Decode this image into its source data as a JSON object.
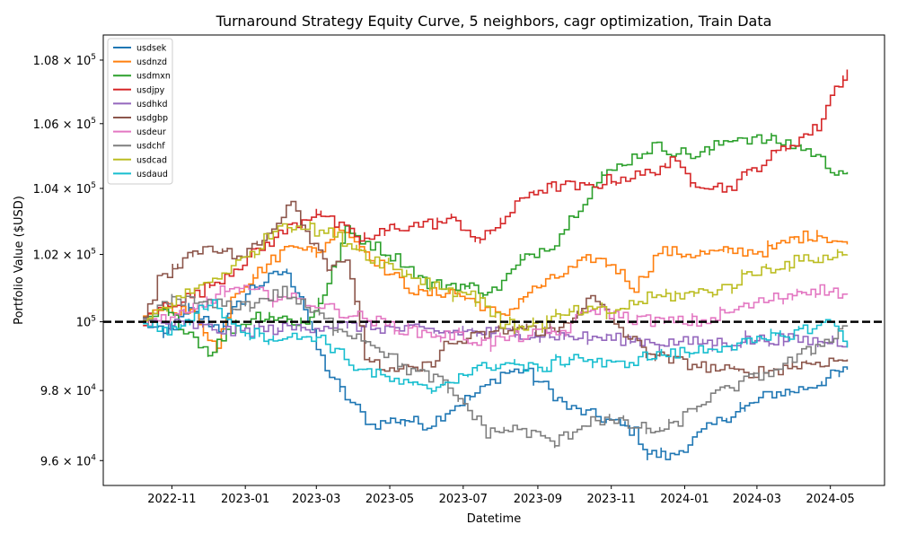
{
  "chart_data": {
    "type": "line",
    "title": "Turnaround Strategy Equity Curve, 5 neighbors, cagr optimization, Train Data",
    "xlabel": "Datetime",
    "ylabel": "Portfolio Value ($USD)",
    "yscale": "log",
    "ylim": [
      95300,
      108800
    ],
    "xlim": [
      "2022-09-05",
      "2024-06-15"
    ],
    "grid": false,
    "legend_position": "upper-left",
    "x_ticks": [
      "2022-11",
      "2023-01",
      "2023-03",
      "2023-05",
      "2023-07",
      "2023-09",
      "2023-11",
      "2024-01",
      "2024-03",
      "2024-05"
    ],
    "y_ticks": [
      {
        "value": 96000,
        "base": "9.6 × 10",
        "exp": "4"
      },
      {
        "value": 98000,
        "base": "9.8 × 10",
        "exp": "4"
      },
      {
        "value": 100000,
        "base": "10",
        "exp": "5"
      },
      {
        "value": 102000,
        "base": "1.02 × 10",
        "exp": "5"
      },
      {
        "value": 104000,
        "base": "1.04 × 10",
        "exp": "5"
      },
      {
        "value": 106000,
        "base": "1.06 × 10",
        "exp": "5"
      },
      {
        "value": 108000,
        "base": "1.08 × 10",
        "exp": "5"
      }
    ],
    "reference_line": {
      "y": 100000,
      "style": "dashed",
      "color": "#000000"
    },
    "series": [
      {
        "name": "usdsek",
        "color": "#1f77b4",
        "points": [
          [
            "2022-10-08",
            100000
          ],
          [
            "2022-10-25",
            99600
          ],
          [
            "2022-11-15",
            100300
          ],
          [
            "2022-12-10",
            99800
          ],
          [
            "2023-01-05",
            101000
          ],
          [
            "2023-02-01",
            101500
          ],
          [
            "2023-02-15",
            100800
          ],
          [
            "2023-03-01",
            99200
          ],
          [
            "2023-03-12",
            98400
          ],
          [
            "2023-03-25",
            97800
          ],
          [
            "2023-04-15",
            97000
          ],
          [
            "2023-05-10",
            97200
          ],
          [
            "2023-06-01",
            97000
          ],
          [
            "2023-06-20",
            97500
          ],
          [
            "2023-07-15",
            98000
          ],
          [
            "2023-08-01",
            98500
          ],
          [
            "2023-08-20",
            98600
          ],
          [
            "2023-09-10",
            98000
          ],
          [
            "2023-09-25",
            97500
          ],
          [
            "2023-10-15",
            97300
          ],
          [
            "2023-11-01",
            97100
          ],
          [
            "2023-11-20",
            96800
          ],
          [
            "2023-12-01",
            96200
          ],
          [
            "2023-12-20",
            96100
          ],
          [
            "2024-01-15",
            96800
          ],
          [
            "2024-02-01",
            97200
          ],
          [
            "2024-02-20",
            97500
          ],
          [
            "2024-03-10",
            97900
          ],
          [
            "2024-04-01",
            98000
          ],
          [
            "2024-04-20",
            98200
          ],
          [
            "2024-05-05",
            98500
          ],
          [
            "2024-05-15",
            98600
          ]
        ]
      },
      {
        "name": "usdnzd",
        "color": "#ff7f0e",
        "points": [
          [
            "2022-10-08",
            100000
          ],
          [
            "2022-10-25",
            100500
          ],
          [
            "2022-11-20",
            100200
          ],
          [
            "2022-12-08",
            99200
          ],
          [
            "2022-12-20",
            100800
          ],
          [
            "2023-01-15",
            101600
          ],
          [
            "2023-02-10",
            102400
          ],
          [
            "2023-03-01",
            102000
          ],
          [
            "2023-03-20",
            102900
          ],
          [
            "2023-04-10",
            102100
          ],
          [
            "2023-05-01",
            101400
          ],
          [
            "2023-05-25",
            100800
          ],
          [
            "2023-06-20",
            100900
          ],
          [
            "2023-07-15",
            100500
          ],
          [
            "2023-08-01",
            100100
          ],
          [
            "2023-08-20",
            100800
          ],
          [
            "2023-09-15",
            101300
          ],
          [
            "2023-10-15",
            101900
          ],
          [
            "2023-11-01",
            101700
          ],
          [
            "2023-11-20",
            101000
          ],
          [
            "2023-12-10",
            102100
          ],
          [
            "2024-01-10",
            102000
          ],
          [
            "2024-02-10",
            102100
          ],
          [
            "2024-03-10",
            102100
          ],
          [
            "2024-04-01",
            102500
          ],
          [
            "2024-04-20",
            102600
          ],
          [
            "2024-05-15",
            102300
          ]
        ]
      },
      {
        "name": "usdmxn",
        "color": "#2ca02c",
        "points": [
          [
            "2022-10-08",
            100000
          ],
          [
            "2022-10-25",
            100300
          ],
          [
            "2022-11-15",
            99700
          ],
          [
            "2022-12-01",
            99100
          ],
          [
            "2022-12-20",
            99800
          ],
          [
            "2023-01-10",
            100200
          ],
          [
            "2023-02-01",
            100100
          ],
          [
            "2023-02-20",
            99900
          ],
          [
            "2023-03-10",
            101100
          ],
          [
            "2023-03-25",
            102700
          ],
          [
            "2023-04-15",
            102300
          ],
          [
            "2023-05-10",
            101800
          ],
          [
            "2023-06-01",
            101100
          ],
          [
            "2023-06-25",
            101100
          ],
          [
            "2023-07-25",
            100900
          ],
          [
            "2023-08-10",
            101500
          ],
          [
            "2023-08-25",
            102000
          ],
          [
            "2023-09-15",
            102400
          ],
          [
            "2023-10-01",
            103300
          ],
          [
            "2023-10-20",
            104200
          ],
          [
            "2023-11-10",
            104800
          ],
          [
            "2023-12-05",
            105300
          ],
          [
            "2024-01-10",
            105000
          ],
          [
            "2024-02-10",
            105600
          ],
          [
            "2024-03-01",
            105500
          ],
          [
            "2024-03-25",
            105400
          ],
          [
            "2024-04-15",
            105100
          ],
          [
            "2024-05-01",
            104600
          ],
          [
            "2024-05-15",
            104500
          ]
        ]
      },
      {
        "name": "usdjpy",
        "color": "#d62728",
        "points": [
          [
            "2022-10-08",
            100000
          ],
          [
            "2022-10-25",
            100500
          ],
          [
            "2022-11-20",
            100800
          ],
          [
            "2022-12-15",
            101400
          ],
          [
            "2023-01-10",
            102100
          ],
          [
            "2023-02-05",
            102800
          ],
          [
            "2023-03-01",
            103300
          ],
          [
            "2023-03-20",
            102800
          ],
          [
            "2023-04-10",
            102400
          ],
          [
            "2023-05-01",
            102800
          ],
          [
            "2023-05-25",
            102900
          ],
          [
            "2023-06-25",
            103000
          ],
          [
            "2023-07-15",
            102400
          ],
          [
            "2023-08-01",
            103000
          ],
          [
            "2023-08-25",
            103900
          ],
          [
            "2023-09-20",
            104100
          ],
          [
            "2023-10-10",
            104000
          ],
          [
            "2023-11-01",
            104300
          ],
          [
            "2023-11-25",
            104400
          ],
          [
            "2023-12-20",
            104800
          ],
          [
            "2024-01-10",
            104200
          ],
          [
            "2024-02-05",
            104000
          ],
          [
            "2024-03-01",
            104700
          ],
          [
            "2024-03-25",
            105300
          ],
          [
            "2024-04-20",
            105900
          ],
          [
            "2024-05-01",
            106900
          ],
          [
            "2024-05-15",
            107700
          ]
        ]
      },
      {
        "name": "usdhkd",
        "color": "#9467bd",
        "points": [
          [
            "2022-10-08",
            100000
          ],
          [
            "2022-11-15",
            99900
          ],
          [
            "2022-12-20",
            99700
          ],
          [
            "2023-02-01",
            99800
          ],
          [
            "2023-03-15",
            99900
          ],
          [
            "2023-05-01",
            99800
          ],
          [
            "2023-06-15",
            99700
          ],
          [
            "2023-08-01",
            99700
          ],
          [
            "2023-09-15",
            99600
          ],
          [
            "2023-11-01",
            99500
          ],
          [
            "2023-12-15",
            99400
          ],
          [
            "2024-02-01",
            99400
          ],
          [
            "2024-03-15",
            99500
          ],
          [
            "2024-05-15",
            99400
          ]
        ]
      },
      {
        "name": "usdgbp",
        "color": "#8c564b",
        "points": [
          [
            "2022-10-08",
            100000
          ],
          [
            "2022-10-20",
            101200
          ],
          [
            "2022-11-10",
            101900
          ],
          [
            "2022-12-01",
            102300
          ],
          [
            "2022-12-25",
            101900
          ],
          [
            "2023-01-15",
            102400
          ],
          [
            "2023-02-08",
            103700
          ],
          [
            "2023-02-20",
            102700
          ],
          [
            "2023-03-10",
            101700
          ],
          [
            "2023-03-25",
            101900
          ],
          [
            "2023-04-10",
            99000
          ],
          [
            "2023-05-01",
            98500
          ],
          [
            "2023-06-01",
            98700
          ],
          [
            "2023-06-15",
            99300
          ],
          [
            "2023-07-15",
            99600
          ],
          [
            "2023-08-15",
            99800
          ],
          [
            "2023-09-15",
            99700
          ],
          [
            "2023-10-15",
            100700
          ],
          [
            "2023-11-15",
            99500
          ],
          [
            "2023-12-15",
            98900
          ],
          [
            "2024-01-15",
            98700
          ],
          [
            "2024-02-15",
            98500
          ],
          [
            "2024-03-15",
            98600
          ],
          [
            "2024-04-15",
            98800
          ],
          [
            "2024-05-15",
            98900
          ]
        ]
      },
      {
        "name": "usdeur",
        "color": "#e377c2",
        "points": [
          [
            "2022-10-08",
            100000
          ],
          [
            "2022-11-15",
            100200
          ],
          [
            "2022-12-15",
            101000
          ],
          [
            "2023-01-20",
            100800
          ],
          [
            "2023-02-20",
            100600
          ],
          [
            "2023-03-20",
            100300
          ],
          [
            "2023-04-20",
            100000
          ],
          [
            "2023-05-20",
            99700
          ],
          [
            "2023-06-20",
            99600
          ],
          [
            "2023-07-20",
            99400
          ],
          [
            "2023-08-20",
            99600
          ],
          [
            "2023-09-20",
            99700
          ],
          [
            "2023-10-15",
            100400
          ],
          [
            "2023-11-15",
            100100
          ],
          [
            "2023-12-15",
            100000
          ],
          [
            "2024-01-15",
            100000
          ],
          [
            "2024-02-15",
            100400
          ],
          [
            "2024-03-15",
            100700
          ],
          [
            "2024-04-15",
            101000
          ],
          [
            "2024-05-15",
            100800
          ]
        ]
      },
      {
        "name": "usdchf",
        "color": "#7f7f7f",
        "points": [
          [
            "2022-10-08",
            100000
          ],
          [
            "2022-11-01",
            100700
          ],
          [
            "2022-12-01",
            100500
          ],
          [
            "2023-01-01",
            100500
          ],
          [
            "2023-02-01",
            100900
          ],
          [
            "2023-02-20",
            100400
          ],
          [
            "2023-03-15",
            99900
          ],
          [
            "2023-04-15",
            99400
          ],
          [
            "2023-05-15",
            98600
          ],
          [
            "2023-06-10",
            98300
          ],
          [
            "2023-07-01",
            97600
          ],
          [
            "2023-07-20",
            96800
          ],
          [
            "2023-08-15",
            96900
          ],
          [
            "2023-09-15",
            96500
          ],
          [
            "2023-10-15",
            97200
          ],
          [
            "2023-11-15",
            97000
          ],
          [
            "2023-12-15",
            96800
          ],
          [
            "2024-01-15",
            97700
          ],
          [
            "2024-02-15",
            98200
          ],
          [
            "2024-03-15",
            98600
          ],
          [
            "2024-04-15",
            99200
          ],
          [
            "2024-05-15",
            99900
          ]
        ]
      },
      {
        "name": "usdcad",
        "color": "#bcbd22",
        "points": [
          [
            "2022-10-08",
            100000
          ],
          [
            "2022-11-01",
            100600
          ],
          [
            "2022-12-01",
            101200
          ],
          [
            "2023-01-01",
            101900
          ],
          [
            "2023-02-01",
            103000
          ],
          [
            "2023-02-20",
            102800
          ],
          [
            "2023-03-15",
            102600
          ],
          [
            "2023-04-15",
            101900
          ],
          [
            "2023-05-15",
            101400
          ],
          [
            "2023-06-15",
            101000
          ],
          [
            "2023-07-15",
            100700
          ],
          [
            "2023-08-01",
            99900
          ],
          [
            "2023-09-01",
            99900
          ],
          [
            "2023-10-01",
            100300
          ],
          [
            "2023-11-01",
            100300
          ],
          [
            "2023-12-01",
            100700
          ],
          [
            "2024-01-01",
            100800
          ],
          [
            "2024-02-01",
            101000
          ],
          [
            "2024-03-01",
            101500
          ],
          [
            "2024-04-01",
            101800
          ],
          [
            "2024-05-15",
            102000
          ]
        ]
      },
      {
        "name": "usdaud",
        "color": "#17becf",
        "points": [
          [
            "2022-10-08",
            100000
          ],
          [
            "2022-11-01",
            99700
          ],
          [
            "2022-12-01",
            100600
          ],
          [
            "2023-01-01",
            99700
          ],
          [
            "2023-02-01",
            99500
          ],
          [
            "2023-03-01",
            99600
          ],
          [
            "2023-04-01",
            98700
          ],
          [
            "2023-05-01",
            98300
          ],
          [
            "2023-06-01",
            98000
          ],
          [
            "2023-07-01",
            98500
          ],
          [
            "2023-08-01",
            98800
          ],
          [
            "2023-09-01",
            98600
          ],
          [
            "2023-10-01",
            99000
          ],
          [
            "2023-11-01",
            98700
          ],
          [
            "2023-12-01",
            99000
          ],
          [
            "2024-01-01",
            99100
          ],
          [
            "2024-02-01",
            99300
          ],
          [
            "2024-03-01",
            99400
          ],
          [
            "2024-04-01",
            99700
          ],
          [
            "2024-05-01",
            100000
          ],
          [
            "2024-05-15",
            99400
          ]
        ]
      }
    ]
  }
}
